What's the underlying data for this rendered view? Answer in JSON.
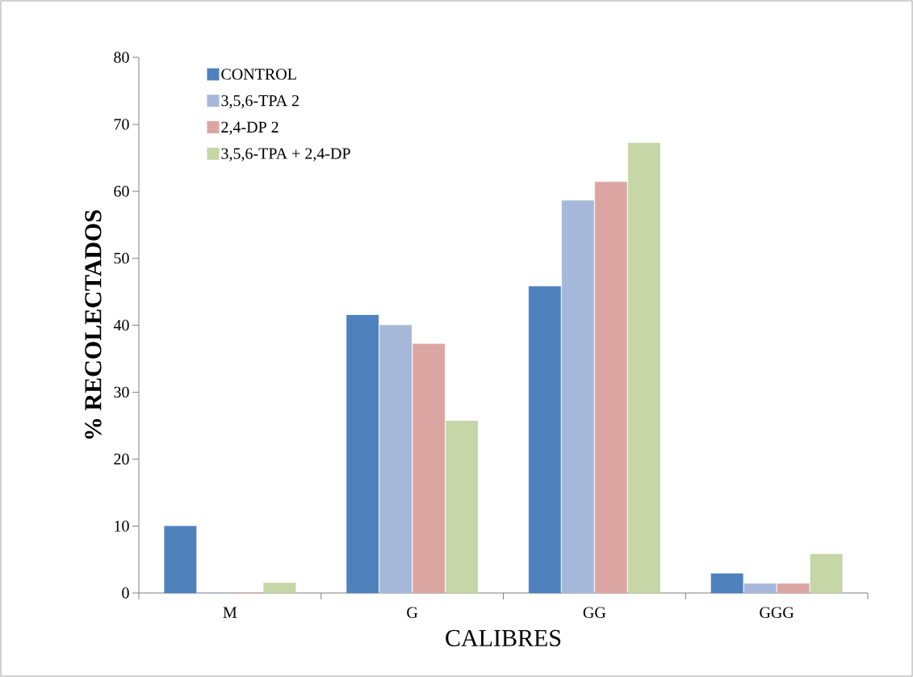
{
  "chart_data": {
    "type": "bar",
    "xlabel": "CALIBRES",
    "ylabel": "% RECOLECTADOS",
    "categories": [
      "M",
      "G",
      "GG",
      "GGG"
    ],
    "series": [
      {
        "name": "CONTROL",
        "color": "#4f81bd",
        "values": [
          10,
          41.5,
          45.8,
          2.9
        ]
      },
      {
        "name": "3,5,6-TPA 2",
        "color": "#a5b8da",
        "values": [
          0,
          40,
          58.6,
          1.4
        ]
      },
      {
        "name": "2,4-DP 2",
        "color": "#dba6a2",
        "values": [
          0,
          37.2,
          61.4,
          1.4
        ]
      },
      {
        "name": "3,5,6-TPA + 2,4-DP",
        "color": "#c6d6a7",
        "values": [
          1.5,
          25.7,
          67.2,
          5.8
        ]
      }
    ],
    "ylim": [
      0,
      80
    ],
    "yticks": [
      0,
      10,
      20,
      30,
      40,
      50,
      60,
      70,
      80
    ],
    "grid": false,
    "legend": "top left"
  }
}
